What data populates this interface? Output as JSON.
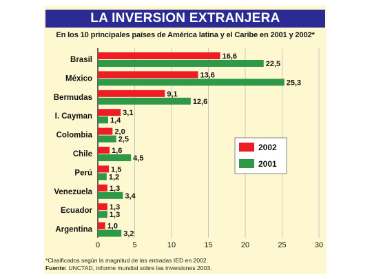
{
  "title": "LA INVERSION EXTRANJERA",
  "subtitle": "En los 10 principales países de América latina y el Caribe en 2001 y 2002*",
  "footnote": "*Clasificados según la magnitud de las entradas IED en 2002.",
  "source_label": "Fuente:",
  "source_text": "UNCTAD, informe mundial sobre las inversiones 2003.",
  "colors": {
    "s2002": "#ee1c24",
    "s2001": "#2e9a47",
    "background": "#fdf8cf",
    "title_bg": "#2b2b93"
  },
  "chart_data": {
    "type": "bar",
    "orientation": "horizontal",
    "categories": [
      "Brasil",
      "México",
      "Bermudas",
      "I. Cayman",
      "Colombia",
      "Chile",
      "Perú",
      "Venezuela",
      "Ecuador",
      "Argentina"
    ],
    "series": [
      {
        "name": "2002",
        "color": "#ee1c24",
        "values": [
          16.6,
          13.6,
          9.1,
          3.1,
          2.0,
          1.6,
          1.5,
          1.3,
          1.3,
          1.0
        ],
        "labels": [
          "16,6",
          "13,6",
          "9,1",
          "3,1",
          "2,0",
          "1,6",
          "1,5",
          "1,3",
          "1,3",
          "1,0"
        ]
      },
      {
        "name": "2001",
        "color": "#2e9a47",
        "values": [
          22.5,
          25.3,
          12.6,
          1.4,
          2.5,
          4.5,
          1.2,
          3.4,
          1.3,
          3.2
        ],
        "labels": [
          "22,5",
          "25,3",
          "12,6",
          "1,4",
          "2,5",
          "4,5",
          "1,2",
          "3,4",
          "1,3",
          "3,2"
        ]
      }
    ],
    "xlim": [
      0,
      30
    ],
    "xticks": [
      0,
      5,
      10,
      15,
      20,
      25,
      30
    ],
    "grid": true,
    "legend": "right"
  }
}
